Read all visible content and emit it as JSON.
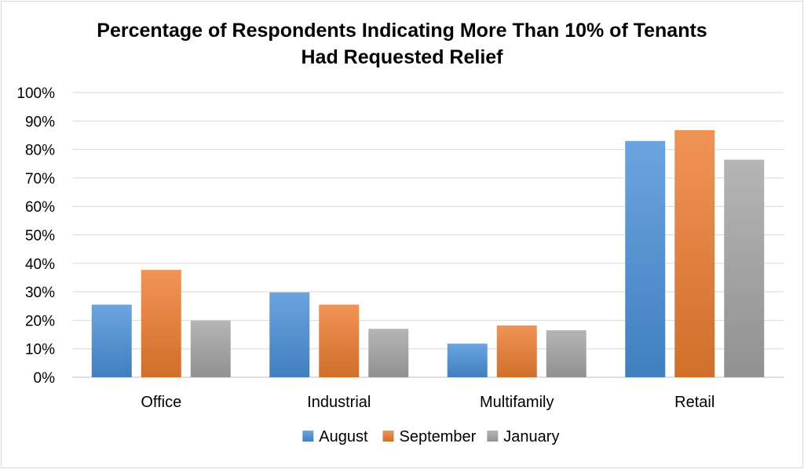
{
  "chart_data": {
    "type": "bar",
    "title_line1": "Percentage of Respondents Indicating More Than 10% of Tenants",
    "title_line2": "Had Requested Relief",
    "categories": [
      "Office",
      "Industrial",
      "Multifamily",
      "Retail"
    ],
    "series": [
      {
        "name": "August",
        "values": [
          25.5,
          29.8,
          11.8,
          83.0
        ],
        "color": "#4a90d9"
      },
      {
        "name": "September",
        "values": [
          37.7,
          25.5,
          18.2,
          86.8
        ],
        "color": "#ed7d31"
      },
      {
        "name": "January",
        "values": [
          19.9,
          17.0,
          16.5,
          76.4
        ],
        "color": "#a5a5a5"
      }
    ],
    "ylim": [
      0,
      100
    ],
    "yticks": [
      0,
      10,
      20,
      30,
      40,
      50,
      60,
      70,
      80,
      90,
      100
    ],
    "ytick_labels": [
      "0%",
      "10%",
      "20%",
      "30%",
      "40%",
      "50%",
      "60%",
      "70%",
      "80%",
      "90%",
      "100%"
    ],
    "grid": true,
    "legend_position": "bottom"
  }
}
